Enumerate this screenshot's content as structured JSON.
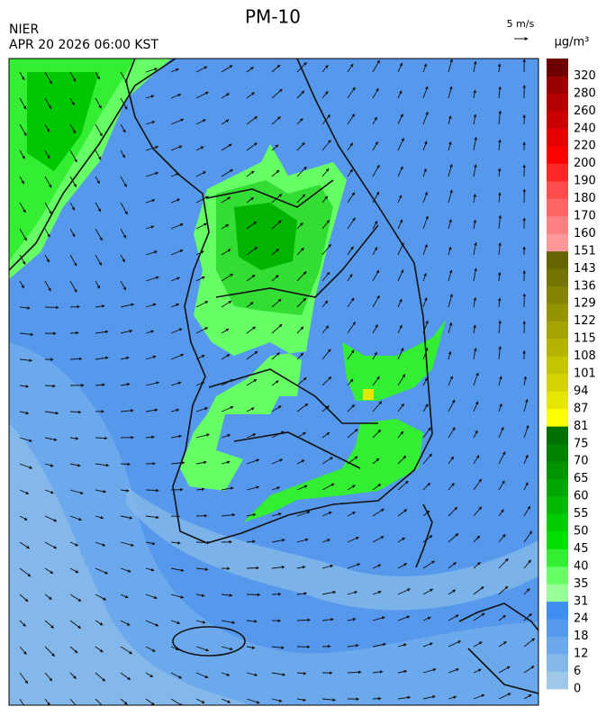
{
  "header": {
    "title": "PM-10",
    "agency": "NIER",
    "datetime": "APR 20 2026 06:00 KST"
  },
  "wind_legend": {
    "label": "5 m/s"
  },
  "colorbar": {
    "unit": "μg/m³",
    "levels": [
      {
        "value": 0,
        "color": "#9ec8e6"
      },
      {
        "value": 6,
        "color": "#84b8ea"
      },
      {
        "value": 12,
        "color": "#6ca8ec"
      },
      {
        "value": 18,
        "color": "#5699ec"
      },
      {
        "value": 24,
        "color": "#3f8ef2"
      },
      {
        "value": 31,
        "color": "#99ff99"
      },
      {
        "value": 35,
        "color": "#66ff66"
      },
      {
        "value": 40,
        "color": "#33ee33"
      },
      {
        "value": 45,
        "color": "#00e000"
      },
      {
        "value": 50,
        "color": "#00cc00"
      },
      {
        "value": 55,
        "color": "#00b800"
      },
      {
        "value": 60,
        "color": "#00a600"
      },
      {
        "value": 65,
        "color": "#009400"
      },
      {
        "value": 70,
        "color": "#008200"
      },
      {
        "value": 75,
        "color": "#007000"
      },
      {
        "value": 81,
        "color": "#ffff00"
      },
      {
        "value": 87,
        "color": "#e6e600"
      },
      {
        "value": 94,
        "color": "#d4d400"
      },
      {
        "value": 101,
        "color": "#c4c400"
      },
      {
        "value": 108,
        "color": "#b4b400"
      },
      {
        "value": 115,
        "color": "#a4a400"
      },
      {
        "value": 122,
        "color": "#949400"
      },
      {
        "value": 129,
        "color": "#848400"
      },
      {
        "value": 136,
        "color": "#747400"
      },
      {
        "value": 143,
        "color": "#646400"
      },
      {
        "value": 151,
        "color": "#ff9999"
      },
      {
        "value": 160,
        "color": "#ff8080"
      },
      {
        "value": 170,
        "color": "#ff6666"
      },
      {
        "value": 180,
        "color": "#ff4d4d"
      },
      {
        "value": 190,
        "color": "#ff2626"
      },
      {
        "value": 200,
        "color": "#ff0000"
      },
      {
        "value": 220,
        "color": "#e60000"
      },
      {
        "value": 240,
        "color": "#cc0000"
      },
      {
        "value": 260,
        "color": "#b30000"
      },
      {
        "value": 280,
        "color": "#990000"
      },
      {
        "value": 320,
        "color": "#6e0000"
      }
    ]
  }
}
